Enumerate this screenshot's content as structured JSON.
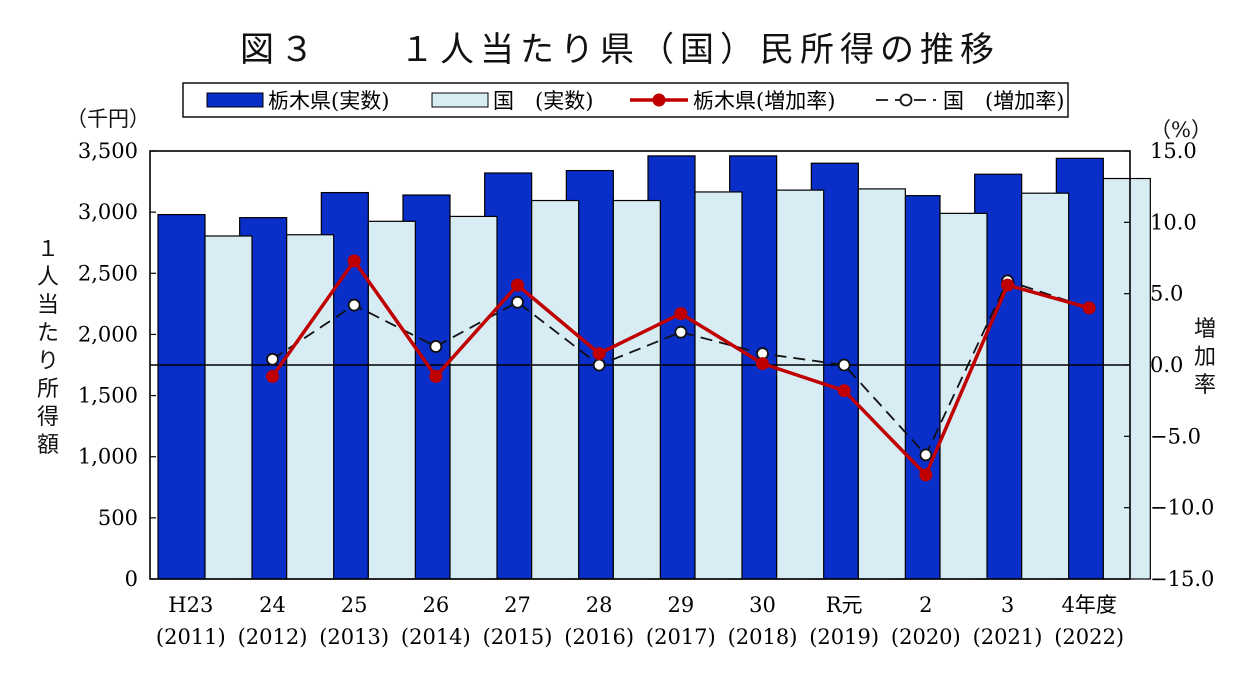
{
  "chart_data": {
    "type": "bar+line",
    "title": "図３　　１人当たり県（国）民所得の推移",
    "left_unit": "（千円）",
    "right_unit": "（%）",
    "left_axis_label": "１人当たり所得額",
    "right_axis_label": "増加率",
    "categories": [
      [
        "H23",
        "(2011)"
      ],
      [
        "24",
        "(2012)"
      ],
      [
        "25",
        "(2013)"
      ],
      [
        "26",
        "(2014)"
      ],
      [
        "27",
        "(2015)"
      ],
      [
        "28",
        "(2016)"
      ],
      [
        "29",
        "(2017)"
      ],
      [
        "30",
        "(2018)"
      ],
      [
        "R元",
        "(2019)"
      ],
      [
        "2",
        "(2020)"
      ],
      [
        "3",
        "(2021)"
      ],
      [
        "4年度",
        "(2022)"
      ]
    ],
    "left_ylim": [
      0,
      3500
    ],
    "left_ticks": [
      "0",
      "500",
      "1,000",
      "1,500",
      "2,000",
      "2,500",
      "3,000",
      "3,500"
    ],
    "left_tick_values": [
      0,
      500,
      1000,
      1500,
      2000,
      2500,
      3000,
      3500
    ],
    "right_ylim": [
      -15,
      15
    ],
    "right_ticks": [
      "−15.0",
      "−10.0",
      "−5.0",
      "0.0",
      "5.0",
      "10.0",
      "15.0"
    ],
    "right_tick_values": [
      -15,
      -10,
      -5,
      0,
      5,
      10,
      15
    ],
    "series": [
      {
        "name": "栃木県(実数)",
        "kind": "bar",
        "axis": "left",
        "color": "#0a2ec8",
        "values": [
          2980,
          2955,
          3160,
          3140,
          3320,
          3340,
          3460,
          3460,
          3400,
          3135,
          3310,
          3440
        ]
      },
      {
        "name": "国　(実数)",
        "kind": "bar",
        "axis": "left",
        "color": "#d8ecf4",
        "values": [
          2805,
          2815,
          2925,
          2965,
          3095,
          3095,
          3165,
          3180,
          3190,
          2990,
          3155,
          3275
        ]
      },
      {
        "name": "栃木県(増加率)",
        "kind": "line",
        "axis": "right",
        "color": "#c00000",
        "values": [
          null,
          -0.8,
          7.3,
          -0.8,
          5.6,
          0.8,
          3.6,
          0.1,
          -1.8,
          -7.7,
          5.6,
          4.0
        ]
      },
      {
        "name": "国　(増加率)",
        "kind": "line",
        "axis": "right",
        "color": "#111111",
        "dashed": true,
        "values": [
          null,
          0.4,
          4.2,
          1.3,
          4.4,
          0.0,
          2.3,
          0.8,
          0.0,
          -6.3,
          5.9,
          4.0
        ]
      }
    ]
  }
}
